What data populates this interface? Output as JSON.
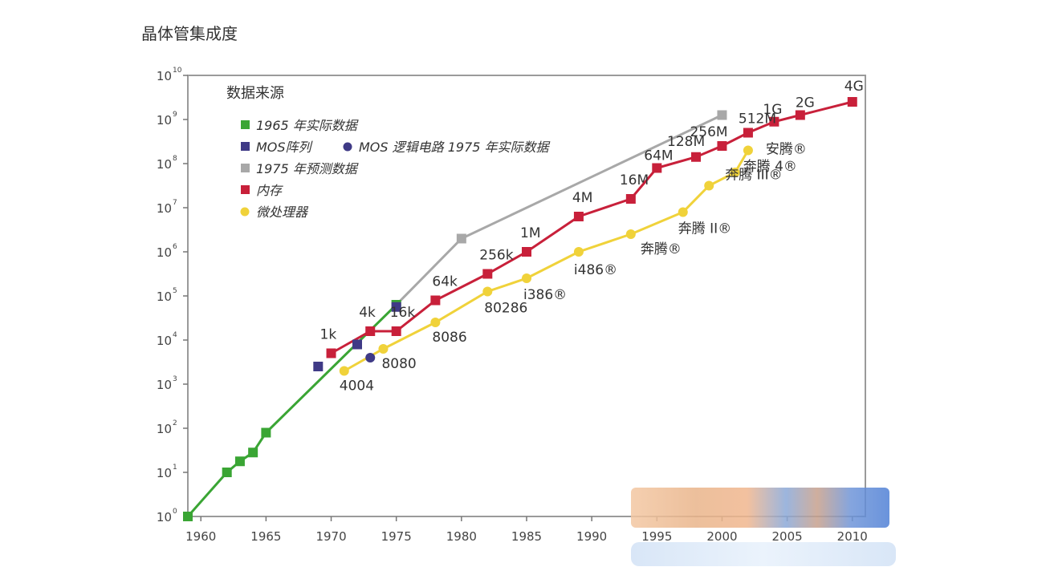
{
  "chart_data": {
    "type": "line",
    "ylabel": "晶体管集成度",
    "xlabel": "",
    "x_ticks": [
      1960,
      1965,
      1970,
      1975,
      1980,
      1985,
      1990,
      1995,
      2000,
      2005,
      2010
    ],
    "y_ticks": [
      "10",
      "10",
      "10",
      "10",
      "10",
      "10",
      "10",
      "10",
      "10",
      "10",
      "10"
    ],
    "y_tick_exponents": [
      "0",
      "1",
      "2",
      "3",
      "4",
      "5",
      "6",
      "7",
      "8",
      "9",
      "10"
    ],
    "ylim_log10": [
      0,
      10
    ],
    "xlim": [
      1959,
      2011
    ],
    "y_scale": "log",
    "legend": {
      "title": "数据来源",
      "position": "top-left",
      "entries": [
        {
          "label": "1965 年实际数据",
          "marker": "square",
          "color": "#3aa534"
        },
        {
          "label": "MOS阵列",
          "marker": "square",
          "color": "#3f3a86"
        },
        {
          "label": "MOS 逻辑电路  1975 年实际数据",
          "marker": "circle",
          "color": "#3f3a86"
        },
        {
          "label": "1975 年预测数据",
          "marker": "square",
          "color": "#a8a8a8"
        },
        {
          "label": "内存",
          "marker": "square",
          "color": "#c8203a"
        },
        {
          "label": "微处理器",
          "marker": "circle",
          "color": "#f0d23a"
        }
      ]
    },
    "series": [
      {
        "name": "1965 年实际数据",
        "color": "#3aa534",
        "marker": "square",
        "points": [
          [
            1959,
            0
          ],
          [
            1962,
            1
          ],
          [
            1963,
            1.25
          ],
          [
            1964,
            1.45
          ],
          [
            1965,
            1.9
          ],
          [
            1975,
            4.8
          ]
        ],
        "point_labels": [
          "",
          "",
          "",
          "",
          "",
          ""
        ]
      },
      {
        "name": "MOS阵列",
        "color": "#3f3a86",
        "marker": "square",
        "line": false,
        "points": [
          [
            1969,
            3.4
          ],
          [
            1972,
            3.9
          ],
          [
            1975,
            4.75
          ]
        ],
        "point_labels": [
          "",
          "",
          ""
        ]
      },
      {
        "name": "MOS 逻辑电路  1975 年实际数据",
        "color": "#3f3a86",
        "marker": "circle",
        "line": false,
        "points": [
          [
            1973,
            3.6
          ]
        ],
        "point_labels": [
          ""
        ]
      },
      {
        "name": "1975 年预测数据",
        "color": "#a8a8a8",
        "marker": "square",
        "points": [
          [
            1975,
            4.8
          ],
          [
            1980,
            6.3
          ],
          [
            2000,
            9.1
          ]
        ],
        "point_labels": [
          "",
          "",
          ""
        ]
      },
      {
        "name": "内存",
        "color": "#c8203a",
        "marker": "square",
        "points": [
          [
            1970,
            3.7
          ],
          [
            1973,
            4.2
          ],
          [
            1975,
            4.2
          ],
          [
            1978,
            4.9
          ],
          [
            1982,
            5.5
          ],
          [
            1985,
            6.0
          ],
          [
            1989,
            6.8
          ],
          [
            1993,
            7.2
          ],
          [
            1995,
            7.9
          ],
          [
            1998,
            8.15
          ],
          [
            2000,
            8.4
          ],
          [
            2002,
            8.7
          ],
          [
            2004,
            8.95
          ],
          [
            2006,
            9.1
          ],
          [
            2010,
            9.4
          ]
        ],
        "point_labels": [
          "1k",
          "4k",
          "16k",
          "64k",
          "256k",
          "1M",
          "4M",
          "16M",
          "64M",
          "128M",
          "256M",
          "512M",
          "1G",
          "2G",
          "4G"
        ]
      },
      {
        "name": "微处理器",
        "color": "#f0d23a",
        "marker": "circle",
        "points": [
          [
            1971,
            3.3
          ],
          [
            1974,
            3.8
          ],
          [
            1978,
            4.4
          ],
          [
            1982,
            5.1
          ],
          [
            1985,
            5.4
          ],
          [
            1989,
            6.0
          ],
          [
            1993,
            6.4
          ],
          [
            1997,
            6.9
          ],
          [
            1999,
            7.5
          ],
          [
            2001,
            7.8
          ],
          [
            2002,
            8.3
          ]
        ],
        "point_labels": [
          "4004",
          "8080",
          "8086",
          "80286",
          "i386®",
          "i486®",
          "奔腾®",
          "奔腾 II®",
          "奔腾 III®",
          "奔腾 4®",
          "安腾®"
        ]
      }
    ]
  }
}
